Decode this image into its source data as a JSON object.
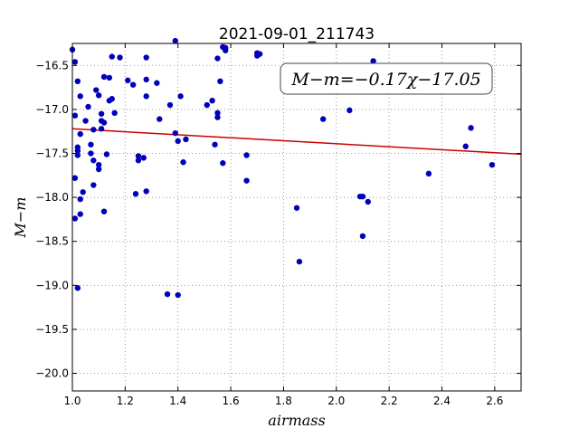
{
  "chart_data": {
    "type": "scatter",
    "title": "2021-09-01_211743",
    "xlabel": "airmass",
    "ylabel": "M−m",
    "xlim": [
      1.0,
      2.7
    ],
    "ylim": [
      -16.25,
      -20.2
    ],
    "y_inverted": true,
    "grid": true,
    "grid_style": "dotted",
    "x_ticks": [
      1.0,
      1.2,
      1.4,
      1.6,
      1.8,
      2.0,
      2.2,
      2.4,
      2.6
    ],
    "x_tick_labels": [
      "1.0",
      "1.2",
      "1.4",
      "1.6",
      "1.8",
      "2.0",
      "2.2",
      "2.4",
      "2.6"
    ],
    "y_ticks": [
      -16.5,
      -17.0,
      -17.5,
      -18.0,
      -18.5,
      -19.0,
      -19.5,
      -20.0
    ],
    "y_tick_labels": [
      "−16.5",
      "−17.0",
      "−17.5",
      "−18.0",
      "−18.5",
      "−19.0",
      "−19.5",
      "−20.0"
    ],
    "annotation": "M−m=−0.17χ−17.05",
    "annotation_placement": "top-right",
    "fit_line": {
      "slope": -0.17,
      "intercept": -17.05,
      "color": "#cc0000"
    },
    "marker_color": "#0000bb",
    "points": [
      [
        1.0,
        -16.32
      ],
      [
        1.01,
        -16.46
      ],
      [
        1.01,
        -17.07
      ],
      [
        1.01,
        -17.78
      ],
      [
        1.01,
        -18.24
      ],
      [
        1.02,
        -19.03
      ],
      [
        1.02,
        -17.43
      ],
      [
        1.02,
        -17.47
      ],
      [
        1.02,
        -17.52
      ],
      [
        1.02,
        -16.68
      ],
      [
        1.03,
        -16.85
      ],
      [
        1.03,
        -17.28
      ],
      [
        1.03,
        -18.02
      ],
      [
        1.03,
        -18.19
      ],
      [
        1.04,
        -17.94
      ],
      [
        1.05,
        -17.13
      ],
      [
        1.06,
        -16.97
      ],
      [
        1.07,
        -17.4
      ],
      [
        1.07,
        -17.5
      ],
      [
        1.08,
        -17.23
      ],
      [
        1.08,
        -17.58
      ],
      [
        1.08,
        -17.86
      ],
      [
        1.09,
        -16.78
      ],
      [
        1.1,
        -17.68
      ],
      [
        1.1,
        -17.63
      ],
      [
        1.1,
        -16.84
      ],
      [
        1.11,
        -17.05
      ],
      [
        1.11,
        -17.22
      ],
      [
        1.11,
        -17.13
      ],
      [
        1.12,
        -17.15
      ],
      [
        1.12,
        -16.63
      ],
      [
        1.12,
        -18.16
      ],
      [
        1.13,
        -17.51
      ],
      [
        1.14,
        -16.9
      ],
      [
        1.14,
        -16.64
      ],
      [
        1.15,
        -16.88
      ],
      [
        1.15,
        -16.4
      ],
      [
        1.16,
        -17.04
      ],
      [
        1.18,
        -16.41
      ],
      [
        1.21,
        -16.67
      ],
      [
        1.23,
        -16.72
      ],
      [
        1.24,
        -17.96
      ],
      [
        1.25,
        -17.53
      ],
      [
        1.25,
        -17.58
      ],
      [
        1.27,
        -17.55
      ],
      [
        1.28,
        -16.41
      ],
      [
        1.28,
        -16.66
      ],
      [
        1.28,
        -16.85
      ],
      [
        1.28,
        -17.93
      ],
      [
        1.32,
        -16.7
      ],
      [
        1.33,
        -17.11
      ],
      [
        1.36,
        -19.1
      ],
      [
        1.37,
        -16.95
      ],
      [
        1.39,
        -17.27
      ],
      [
        1.39,
        -16.22
      ],
      [
        1.4,
        -19.11
      ],
      [
        1.4,
        -17.36
      ],
      [
        1.41,
        -16.85
      ],
      [
        1.42,
        -17.6
      ],
      [
        1.43,
        -17.34
      ],
      [
        1.51,
        -16.95
      ],
      [
        1.53,
        -16.9
      ],
      [
        1.54,
        -17.4
      ],
      [
        1.55,
        -17.04
      ],
      [
        1.55,
        -17.09
      ],
      [
        1.55,
        -16.42
      ],
      [
        1.56,
        -16.68
      ],
      [
        1.57,
        -16.29
      ],
      [
        1.57,
        -17.61
      ],
      [
        1.58,
        -16.3
      ],
      [
        1.58,
        -16.33
      ],
      [
        1.66,
        -17.52
      ],
      [
        1.66,
        -17.81
      ],
      [
        1.7,
        -16.36
      ],
      [
        1.7,
        -16.39
      ],
      [
        1.71,
        -16.37
      ],
      [
        1.85,
        -18.12
      ],
      [
        1.86,
        -18.73
      ],
      [
        1.95,
        -17.11
      ],
      [
        2.05,
        -17.01
      ],
      [
        2.09,
        -17.99
      ],
      [
        2.1,
        -17.99
      ],
      [
        2.1,
        -18.44
      ],
      [
        2.12,
        -18.05
      ],
      [
        2.14,
        -16.45
      ],
      [
        2.35,
        -17.73
      ],
      [
        2.49,
        -17.42
      ],
      [
        2.51,
        -17.21
      ],
      [
        2.59,
        -17.63
      ]
    ]
  }
}
